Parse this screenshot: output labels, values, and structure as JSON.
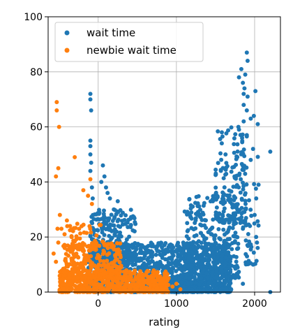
{
  "chart_data": {
    "type": "scatter",
    "title": "",
    "xlabel": "rating",
    "ylabel": "",
    "xlim": [
      -640,
      2330
    ],
    "ylim": [
      0,
      100
    ],
    "xticks": [
      0,
      1000,
      2000
    ],
    "yticks": [
      0,
      20,
      40,
      60,
      80,
      100
    ],
    "xtick_labels": [
      "0",
      "1000",
      "2000"
    ],
    "ytick_labels": [
      "0",
      "20",
      "40",
      "60",
      "80",
      "100"
    ],
    "grid": true,
    "legend_position": "upper-left",
    "series": [
      {
        "name": "wait time",
        "color": "#1f77b4",
        "clusters": [
          {
            "x_range": [
              -150,
              1700
            ],
            "y_range": [
              0,
              18
            ],
            "count": 1400
          },
          {
            "x_range": [
              -100,
              500
            ],
            "y_range": [
              10,
              30
            ],
            "count": 260
          },
          {
            "x_range": [
              1100,
              1800
            ],
            "y_range": [
              5,
              35
            ],
            "count": 300
          },
          {
            "x_range": [
              1500,
              1900
            ],
            "y_range": [
              25,
              60
            ],
            "count": 160
          },
          {
            "x_range": [
              1850,
              2050
            ],
            "y_range": [
              10,
              50
            ],
            "count": 40
          }
        ],
        "points": [
          {
            "x": -100,
            "y": 72
          },
          {
            "x": -100,
            "y": 70
          },
          {
            "x": -90,
            "y": 66
          },
          {
            "x": -100,
            "y": 55
          },
          {
            "x": -100,
            "y": 53
          },
          {
            "x": -100,
            "y": 50
          },
          {
            "x": -90,
            "y": 47
          },
          {
            "x": -100,
            "y": 44
          },
          {
            "x": 60,
            "y": 46
          },
          {
            "x": 80,
            "y": 42
          },
          {
            "x": 100,
            "y": 38
          },
          {
            "x": 120,
            "y": 36
          },
          {
            "x": 150,
            "y": 34
          },
          {
            "x": 40,
            "y": 40
          },
          {
            "x": -80,
            "y": 38
          },
          {
            "x": -70,
            "y": 34
          },
          {
            "x": 200,
            "y": 30
          },
          {
            "x": 250,
            "y": 33
          },
          {
            "x": 1900,
            "y": 87
          },
          {
            "x": 1910,
            "y": 84
          },
          {
            "x": 1830,
            "y": 81
          },
          {
            "x": 1880,
            "y": 79
          },
          {
            "x": 1800,
            "y": 78
          },
          {
            "x": 1850,
            "y": 76
          },
          {
            "x": 1870,
            "y": 74
          },
          {
            "x": 1860,
            "y": 72
          },
          {
            "x": 2010,
            "y": 73
          },
          {
            "x": 1910,
            "y": 71
          },
          {
            "x": 1860,
            "y": 68
          },
          {
            "x": 1900,
            "y": 66
          },
          {
            "x": 1990,
            "y": 64
          },
          {
            "x": 1950,
            "y": 63
          },
          {
            "x": 1860,
            "y": 62
          },
          {
            "x": 2040,
            "y": 61
          },
          {
            "x": 1800,
            "y": 59
          },
          {
            "x": 1900,
            "y": 57
          },
          {
            "x": 1840,
            "y": 56
          },
          {
            "x": 2200,
            "y": 51
          },
          {
            "x": 1980,
            "y": 52
          },
          {
            "x": 1950,
            "y": 48
          },
          {
            "x": 2050,
            "y": 39
          },
          {
            "x": 2020,
            "y": 34
          },
          {
            "x": 2000,
            "y": 28
          },
          {
            "x": 1940,
            "y": 24
          },
          {
            "x": 2030,
            "y": 18
          },
          {
            "x": 1980,
            "y": 10
          },
          {
            "x": 2200,
            "y": 0
          },
          {
            "x": 1850,
            "y": 3
          }
        ]
      },
      {
        "name": "newbie wait time",
        "color": "#ff7f0e",
        "clusters": [
          {
            "x_range": [
              -500,
              900
            ],
            "y_range": [
              0,
              8
            ],
            "count": 600
          },
          {
            "x_range": [
              -450,
              300
            ],
            "y_range": [
              5,
              18
            ],
            "count": 260
          },
          {
            "x_range": [
              -400,
              100
            ],
            "y_range": [
              15,
              25
            ],
            "count": 50
          }
        ],
        "points": [
          {
            "x": -530,
            "y": 69
          },
          {
            "x": -530,
            "y": 66
          },
          {
            "x": -500,
            "y": 60
          },
          {
            "x": -300,
            "y": 49
          },
          {
            "x": -510,
            "y": 45
          },
          {
            "x": -540,
            "y": 42
          },
          {
            "x": -100,
            "y": 41
          },
          {
            "x": -190,
            "y": 37
          },
          {
            "x": -130,
            "y": 35
          },
          {
            "x": -80,
            "y": 32
          },
          {
            "x": -490,
            "y": 28
          },
          {
            "x": -400,
            "y": 26
          },
          {
            "x": -470,
            "y": 23
          },
          {
            "x": -360,
            "y": 24
          },
          {
            "x": -520,
            "y": 23
          },
          {
            "x": -430,
            "y": 21
          },
          {
            "x": -340,
            "y": 20
          },
          {
            "x": -510,
            "y": 18
          },
          {
            "x": -570,
            "y": 14
          },
          {
            "x": -540,
            "y": 11
          },
          {
            "x": 1000,
            "y": 3
          },
          {
            "x": 950,
            "y": 2
          },
          {
            "x": 900,
            "y": 5
          },
          {
            "x": 1050,
            "y": 1
          }
        ]
      }
    ]
  }
}
